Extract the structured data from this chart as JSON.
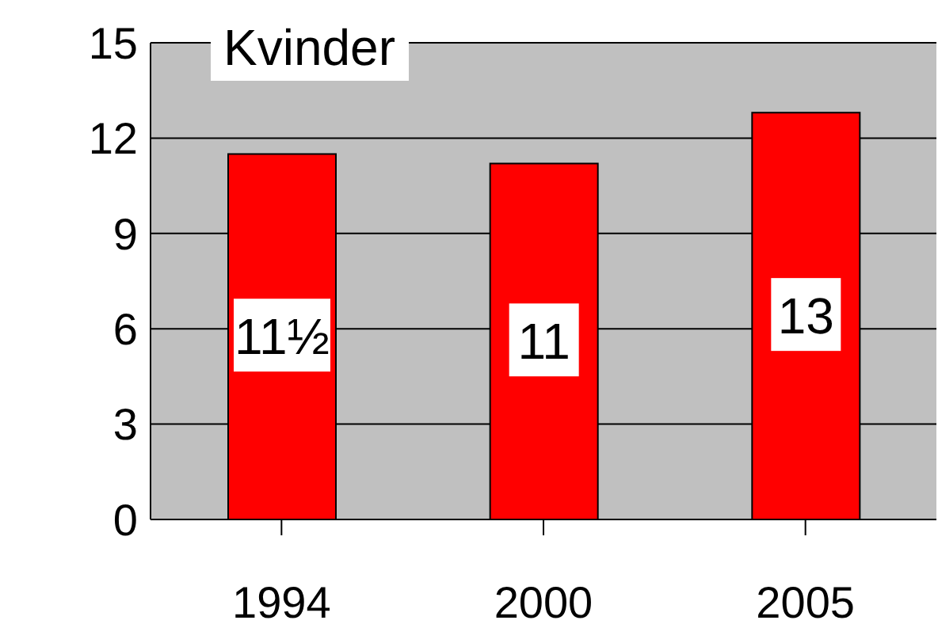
{
  "chart_data": {
    "type": "bar",
    "title": "Kvinder",
    "categories": [
      "1994",
      "2000",
      "2005"
    ],
    "values": [
      11.5,
      11.2,
      12.8
    ],
    "value_labels": [
      "11½",
      "11",
      "13"
    ],
    "color": "#ff0000",
    "ylim": [
      0,
      15
    ],
    "yticks": [
      0,
      3,
      6,
      9,
      12,
      15
    ],
    "grid": "y"
  }
}
